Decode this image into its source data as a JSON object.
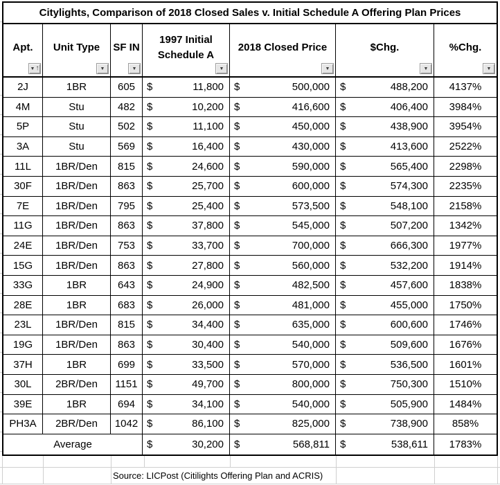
{
  "title": "Citylights, Comparison of 2018 Closed Sales v. Initial Schedule A Offering Plan Prices",
  "currency_symbol": "$",
  "icons": {
    "filter_dropdown": "▼",
    "sort_ascending": "↑"
  },
  "columns": [
    {
      "id": "apt",
      "label": "Apt.",
      "filter_icon": "sort-ascending-filter"
    },
    {
      "id": "unit_type",
      "label": "Unit Type",
      "filter_icon": "filter-dropdown"
    },
    {
      "id": "sf_in",
      "label": "SF IN",
      "filter_icon": "filter-dropdown"
    },
    {
      "id": "schedule_a_1997",
      "label": "1997 Initial Schedule A",
      "filter_icon": "filter-dropdown"
    },
    {
      "id": "closed_price_2018",
      "label": "2018 Closed Price",
      "filter_icon": "filter-dropdown"
    },
    {
      "id": "dollar_chg",
      "label": "$Chg.",
      "filter_icon": "filter-dropdown"
    },
    {
      "id": "pct_chg",
      "label": "%Chg.",
      "filter_icon": "filter-dropdown"
    }
  ],
  "rows": [
    [
      "2J",
      "1BR",
      "605",
      "11,800",
      "500,000",
      "488,200",
      "4137%"
    ],
    [
      "4M",
      "Stu",
      "482",
      "10,200",
      "416,600",
      "406,400",
      "3984%"
    ],
    [
      "5P",
      "Stu",
      "502",
      "11,100",
      "450,000",
      "438,900",
      "3954%"
    ],
    [
      "3A",
      "Stu",
      "569",
      "16,400",
      "430,000",
      "413,600",
      "2522%"
    ],
    [
      "11L",
      "1BR/Den",
      "815",
      "24,600",
      "590,000",
      "565,400",
      "2298%"
    ],
    [
      "30F",
      "1BR/Den",
      "863",
      "25,700",
      "600,000",
      "574,300",
      "2235%"
    ],
    [
      "7E",
      "1BR/Den",
      "795",
      "25,400",
      "573,500",
      "548,100",
      "2158%"
    ],
    [
      "11G",
      "1BR/Den",
      "863",
      "37,800",
      "545,000",
      "507,200",
      "1342%"
    ],
    [
      "24E",
      "1BR/Den",
      "753",
      "33,700",
      "700,000",
      "666,300",
      "1977%"
    ],
    [
      "15G",
      "1BR/Den",
      "863",
      "27,800",
      "560,000",
      "532,200",
      "1914%"
    ],
    [
      "33G",
      "1BR",
      "643",
      "24,900",
      "482,500",
      "457,600",
      "1838%"
    ],
    [
      "28E",
      "1BR",
      "683",
      "26,000",
      "481,000",
      "455,000",
      "1750%"
    ],
    [
      "23L",
      "1BR/Den",
      "815",
      "34,400",
      "635,000",
      "600,600",
      "1746%"
    ],
    [
      "19G",
      "1BR/Den",
      "863",
      "30,400",
      "540,000",
      "509,600",
      "1676%"
    ],
    [
      "37H",
      "1BR",
      "699",
      "33,500",
      "570,000",
      "536,500",
      "1601%"
    ],
    [
      "30L",
      "2BR/Den",
      "1151",
      "49,700",
      "800,000",
      "750,300",
      "1510%"
    ],
    [
      "39E",
      "1BR",
      "694",
      "34,100",
      "540,000",
      "505,900",
      "1484%"
    ],
    [
      "PH3A",
      "2BR/Den",
      "1042",
      "86,100",
      "825,000",
      "738,900",
      "858%"
    ]
  ],
  "average_row": {
    "label": "Average",
    "schedule_a_1997": "30,200",
    "closed_price_2018": "568,811",
    "dollar_chg": "538,611",
    "pct_chg": "1783%"
  },
  "footer": {
    "source": "Source: LICPost (Citilights Offering Plan and ACRIS)"
  }
}
